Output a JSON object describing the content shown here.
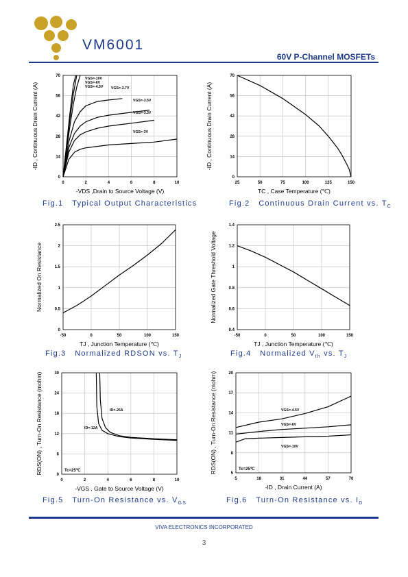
{
  "header": {
    "part_number": "VM6001",
    "product_line": "60V P-Channel MOSFETs",
    "brand_color": "#1e3a8a",
    "logo_color": "#c9a227"
  },
  "footer": {
    "company": "VIVA ELECTRONICS INCORPORATED",
    "page": "3"
  },
  "chart_data": [
    {
      "id": "fig1",
      "type": "line",
      "caption": "Fig.1 Typical Output Characteristics",
      "xlabel": "-VDS ,Drain to Source Voltage (V)",
      "ylabel": "-ID , Continuous Drain Current (A)",
      "xlim": [
        0,
        10
      ],
      "ylim": [
        0,
        70
      ],
      "xticks": [
        "0",
        "2",
        "4",
        "6",
        "8",
        "10"
      ],
      "xtickvals": [
        0,
        2,
        4,
        6,
        8,
        10
      ],
      "yticks": [
        "0",
        "14",
        "28",
        "42",
        "56",
        "70"
      ],
      "ytickvals": [
        0,
        14,
        28,
        42,
        56,
        70
      ],
      "grid": true,
      "series": [
        {
          "name": "VGS=-10V",
          "x": [
            0,
            0.3,
            0.6,
            0.9,
            1.1
          ],
          "y": [
            0,
            22,
            44,
            63,
            72
          ]
        },
        {
          "name": "VGS=-6V",
          "x": [
            0,
            0.3,
            0.6,
            0.9,
            1.2
          ],
          "y": [
            0,
            20,
            40,
            57,
            70
          ]
        },
        {
          "name": "VGS=-4.5V",
          "x": [
            0,
            0.3,
            0.6,
            0.9,
            1.2,
            1.5
          ],
          "y": [
            0,
            18,
            35,
            50,
            62,
            70
          ]
        },
        {
          "name": "VGS=-3.7V",
          "x": [
            0,
            0.5,
            1,
            1.5,
            2,
            3,
            4,
            5.2
          ],
          "y": [
            0,
            24,
            38,
            45,
            49,
            52,
            53,
            54
          ]
        },
        {
          "name": "VGS=-3.5V",
          "x": [
            0,
            0.5,
            1,
            1.5,
            2,
            3,
            4,
            5,
            6,
            7.6
          ],
          "y": [
            0,
            20,
            30,
            35,
            38,
            41,
            42.5,
            43.5,
            44.5,
            46
          ]
        },
        {
          "name": "VGS=-3.3V",
          "x": [
            0,
            0.5,
            1,
            1.5,
            2,
            3,
            4,
            5,
            6,
            8
          ],
          "y": [
            0,
            17,
            25,
            29,
            31,
            33.5,
            35,
            36,
            37,
            39
          ]
        },
        {
          "name": "VGS=-3V",
          "x": [
            0,
            0.5,
            1,
            1.5,
            2,
            3,
            4,
            6,
            8,
            10
          ],
          "y": [
            0,
            12,
            17,
            19,
            20,
            21,
            22,
            23,
            24,
            26
          ]
        }
      ]
    },
    {
      "id": "fig2",
      "type": "line",
      "caption": "Fig.2 Continuous Drain Current vs. TC",
      "xlabel": "TC , Case Temperature (℃)",
      "ylabel": "-ID , Continuous Drain Current (A)",
      "xlim": [
        25,
        150
      ],
      "ylim": [
        0,
        70
      ],
      "xticks": [
        "25",
        "50",
        "75",
        "100",
        "125",
        "150"
      ],
      "xtickvals": [
        25,
        50,
        75,
        100,
        125,
        150
      ],
      "yticks": [
        "0",
        "14",
        "28",
        "42",
        "56",
        "70"
      ],
      "ytickvals": [
        0,
        14,
        28,
        42,
        56,
        70
      ],
      "grid": true,
      "series": [
        {
          "name": "",
          "x": [
            25,
            50,
            75,
            100,
            115,
            125,
            135,
            140,
            145,
            148,
            150
          ],
          "y": [
            70,
            63,
            54,
            43,
            35,
            28,
            20,
            15,
            9,
            5,
            0
          ]
        }
      ]
    },
    {
      "id": "fig3",
      "type": "line",
      "caption": "Fig.3 Normalized RDSON vs. TJ",
      "xlabel": "TJ , Junction Temperature (℃)",
      "ylabel": "Normalized On Resistance",
      "xlim": [
        -50,
        150
      ],
      "ylim": [
        0,
        2.5
      ],
      "xticks": [
        "-50",
        "0",
        "50",
        "100",
        "150"
      ],
      "xtickvals": [
        -50,
        0,
        50,
        100,
        150
      ],
      "yticks": [
        "0",
        "0.5",
        "1",
        "1.5",
        "2",
        "2.5"
      ],
      "ytickvals": [
        0,
        0.5,
        1,
        1.5,
        2,
        2.5
      ],
      "grid": true,
      "series": [
        {
          "name": "",
          "x": [
            -50,
            -25,
            0,
            25,
            50,
            75,
            100,
            125,
            150
          ],
          "y": [
            0.4,
            0.58,
            0.8,
            1.05,
            1.3,
            1.53,
            1.78,
            2.05,
            2.38
          ]
        }
      ]
    },
    {
      "id": "fig4",
      "type": "line",
      "caption": "Fig.4 Normalized Vth vs. TJ",
      "xlabel": "TJ , Junction Temperature (℃)",
      "ylabel": "Normalized Gate Threshold Voltage",
      "xlim": [
        -50,
        150
      ],
      "ylim": [
        0.4,
        1.4
      ],
      "xticks": [
        "-50",
        "0",
        "50",
        "100",
        "150"
      ],
      "xtickvals": [
        -50,
        0,
        50,
        100,
        150
      ],
      "yticks": [
        "0.4",
        "0.6",
        "0.8",
        "1",
        "1.2",
        "1.4"
      ],
      "ytickvals": [
        0.4,
        0.6,
        0.8,
        1.0,
        1.2,
        1.4
      ],
      "grid": true,
      "series": [
        {
          "name": "",
          "x": [
            -50,
            -25,
            0,
            25,
            50,
            75,
            100,
            125,
            150
          ],
          "y": [
            1.2,
            1.15,
            1.09,
            1.02,
            0.95,
            0.87,
            0.79,
            0.71,
            0.63
          ]
        }
      ]
    },
    {
      "id": "fig5",
      "type": "line",
      "caption": "Fig.5 Turn-On Resistance vs. VGS",
      "xlabel": "-VGS , Gate to Source Voltage (V)",
      "ylabel": "RDS(ON) , Turn-On Resistance (mohm)",
      "xlim": [
        0,
        10
      ],
      "ylim": [
        0,
        30
      ],
      "xticks": [
        "0",
        "2",
        "4",
        "6",
        "8",
        "10"
      ],
      "xtickvals": [
        0,
        2,
        4,
        6,
        8,
        10
      ],
      "yticks": [
        "0",
        "6",
        "12",
        "18",
        "24",
        "30"
      ],
      "ytickvals": [
        0,
        6,
        12,
        18,
        24,
        30
      ],
      "grid": true,
      "annotation": "Tc=25℃",
      "series": [
        {
          "name": "ID=-25A",
          "x": [
            3.3,
            3.35,
            3.5,
            3.8,
            4.2,
            5,
            6,
            8,
            10
          ],
          "y": [
            30,
            22,
            16.5,
            13.8,
            12.4,
            11.4,
            10.9,
            10.5,
            10.2
          ]
        },
        {
          "name": "ID=-12A",
          "x": [
            3.0,
            3.05,
            3.2,
            3.5,
            4,
            5,
            6,
            8,
            10
          ],
          "y": [
            30,
            20,
            15,
            13,
            12,
            11.1,
            10.7,
            10.3,
            10.0
          ]
        }
      ]
    },
    {
      "id": "fig6",
      "type": "line",
      "caption": "Fig.6 Turn-On Resistance vs. ID",
      "xlabel": "-ID , Drain Current (A)",
      "ylabel": "RDS(ON) , Turn-On Resistance (mohm)",
      "xlim": [
        5,
        70
      ],
      "ylim": [
        5,
        20
      ],
      "xticks": [
        "5",
        "18",
        "31",
        "44",
        "57",
        "70"
      ],
      "xtickvals": [
        5,
        18,
        31,
        44,
        57,
        70
      ],
      "yticks": [
        "5",
        "8",
        "11",
        "14",
        "17",
        "20"
      ],
      "ytickvals": [
        5,
        8,
        11,
        14,
        17,
        20
      ],
      "grid": true,
      "annotation": "Tc=25℃",
      "series": [
        {
          "name": "VGS=-4.5V",
          "x": [
            5,
            18,
            31,
            44,
            57,
            70
          ],
          "y": [
            11.8,
            12.6,
            13.1,
            13.9,
            14.9,
            16.5
          ]
        },
        {
          "name": "VGS=-6V",
          "x": [
            5,
            18,
            31,
            44,
            57,
            70
          ],
          "y": [
            10.8,
            11.2,
            11.5,
            11.7,
            11.9,
            12.2
          ]
        },
        {
          "name": "VGS=-10V",
          "x": [
            5,
            10,
            18,
            31,
            44,
            57,
            70
          ],
          "y": [
            9.6,
            10.1,
            10.2,
            10.3,
            10.4,
            10.5,
            10.7
          ]
        }
      ]
    }
  ]
}
